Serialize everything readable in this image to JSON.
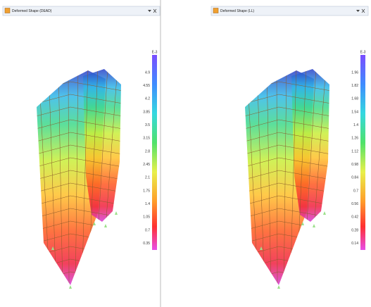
{
  "windows": [
    {
      "title": "Deformed Shape (DEAD)",
      "scale_unit": "E-3",
      "scale_labels": [
        "4.9",
        "4.55",
        "4.2",
        "3.85",
        "3.5",
        "3.15",
        "2.8",
        "2.45",
        "2.1",
        "1.75",
        "1.4",
        "1.05",
        "0.7",
        "0.35"
      ]
    },
    {
      "title": "Deformed Shape (LL)",
      "scale_unit": "E-3",
      "scale_labels": [
        "1.96",
        "1.82",
        "1.68",
        "1.54",
        "1.4",
        "1.26",
        "1.12",
        "0.98",
        "0.84",
        "0.7",
        "0.56",
        "0.42",
        "0.28",
        "0.14"
      ]
    }
  ]
}
